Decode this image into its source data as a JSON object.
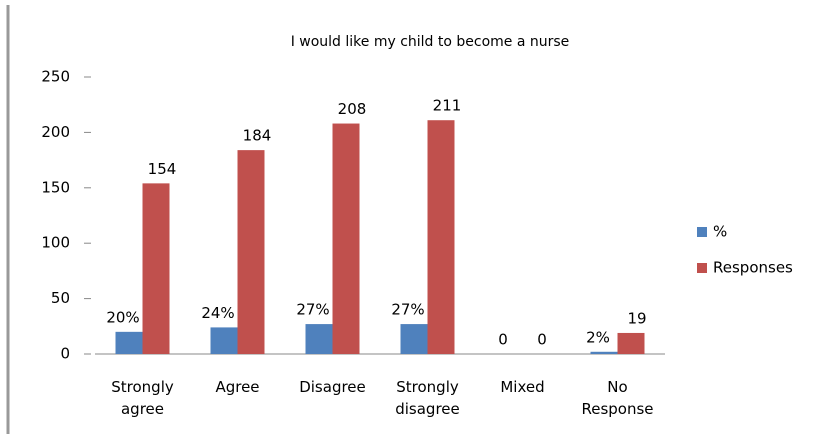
{
  "chart_data": {
    "type": "bar",
    "title": "I would like my child to become a nurse",
    "categories": [
      "Strongly agree",
      "Agree",
      "Disagree",
      "Strongly disagree",
      "Mixed",
      "No Response"
    ],
    "series": [
      {
        "name": "%",
        "color": "#4f81bd",
        "values": [
          20,
          24,
          27,
          27,
          0,
          2
        ],
        "value_labels": [
          "20%",
          "24%",
          "27%",
          "27%",
          "0",
          "2%"
        ]
      },
      {
        "name": "Responses",
        "color": "#c0504d",
        "values": [
          154,
          184,
          208,
          211,
          0,
          19
        ]
      }
    ],
    "ylim": [
      0,
      250
    ],
    "yticks": [
      0,
      50,
      100,
      150,
      200,
      250
    ],
    "grid": false,
    "legend": "right"
  }
}
